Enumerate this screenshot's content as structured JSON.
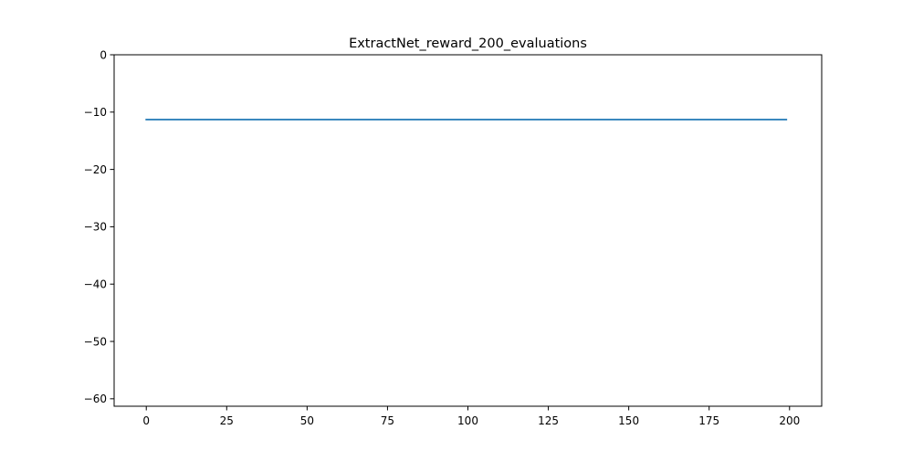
{
  "chart_data": {
    "type": "line",
    "title": "ExtractNet_reward_200_evaluations",
    "xlabel": "",
    "ylabel": "",
    "xlim": [
      -10,
      210
    ],
    "ylim": [
      -61.3,
      0
    ],
    "xticks": [
      0,
      25,
      50,
      75,
      100,
      125,
      150,
      175,
      200
    ],
    "yticks": [
      0,
      -10,
      -20,
      -30,
      -40,
      -50,
      -60
    ],
    "xtick_labels": [
      "0",
      "25",
      "50",
      "75",
      "100",
      "125",
      "150",
      "175",
      "200"
    ],
    "ytick_labels": [
      "0",
      "−10",
      "−20",
      "−30",
      "−40",
      "−50",
      "−60"
    ],
    "grid": false,
    "legend": "none",
    "series": [
      {
        "x": [
          0,
          199
        ],
        "y": [
          -11.3,
          -11.3
        ],
        "color": "#1f77b4"
      }
    ]
  }
}
